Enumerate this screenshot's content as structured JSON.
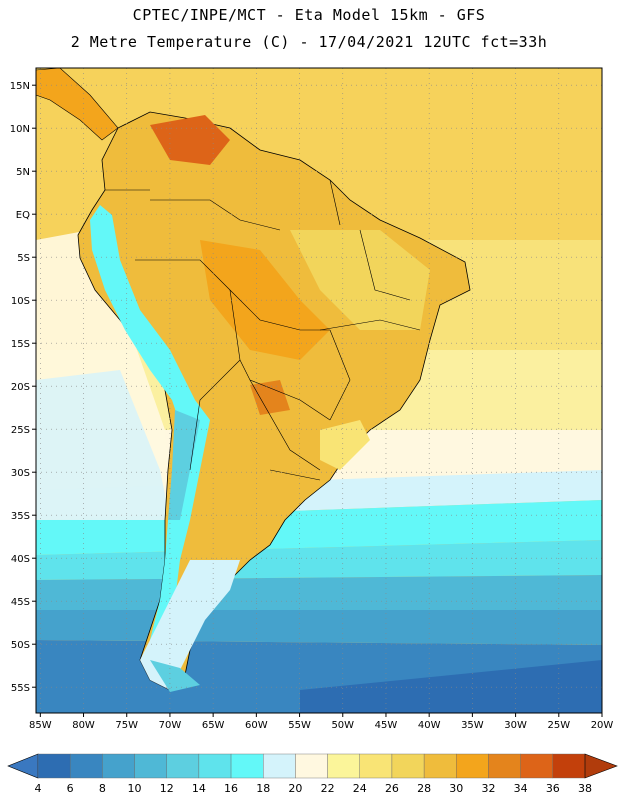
{
  "header": {
    "line1": "CPTEC/INPE/MCT -  Eta Model 15km - GFS",
    "line2": "2 Metre Temperature (C) - 17/04/2021 12UTC fct=33h"
  },
  "map": {
    "lat_labels": [
      "15N",
      "10N",
      "5N",
      "EQ",
      "5S",
      "10S",
      "15S",
      "20S",
      "25S",
      "30S",
      "35S",
      "40S",
      "45S",
      "50S",
      "55S"
    ],
    "lon_labels": [
      "85W",
      "80W",
      "75W",
      "70W",
      "65W",
      "60W",
      "55W",
      "50W",
      "45W",
      "40W",
      "35W",
      "30W",
      "25W",
      "20W"
    ],
    "lat_values": [
      15,
      10,
      5,
      0,
      -5,
      -10,
      -15,
      -20,
      -25,
      -30,
      -35,
      -40,
      -45,
      -50,
      -55
    ],
    "lon_values": [
      -85,
      -80,
      -75,
      -70,
      -65,
      -60,
      -55,
      -50,
      -45,
      -40,
      -35,
      -30,
      -25,
      -20
    ],
    "extent": {
      "lon_min": -85.5,
      "lon_max": -20,
      "lat_min": -58,
      "lat_max": 17
    }
  },
  "colorbar": {
    "labels": [
      "4",
      "6",
      "8",
      "10",
      "12",
      "14",
      "16",
      "18",
      "20",
      "22",
      "24",
      "26",
      "28",
      "30",
      "32",
      "34",
      "36",
      "38"
    ],
    "under_color": "#3a78c0",
    "over_color": "#b13c0c",
    "colors": [
      "#2d6db2",
      "#3986c0",
      "#45a2cc",
      "#4fb8d6",
      "#5dcfe0",
      "#5fe3ec",
      "#63f8f8",
      "#d4f3fb",
      "#fff8e0",
      "#fbf59a",
      "#f9e475",
      "#f2d55b",
      "#efbc3c",
      "#f3a51c",
      "#e4841c",
      "#dd6418",
      "#c3400b"
    ]
  }
}
